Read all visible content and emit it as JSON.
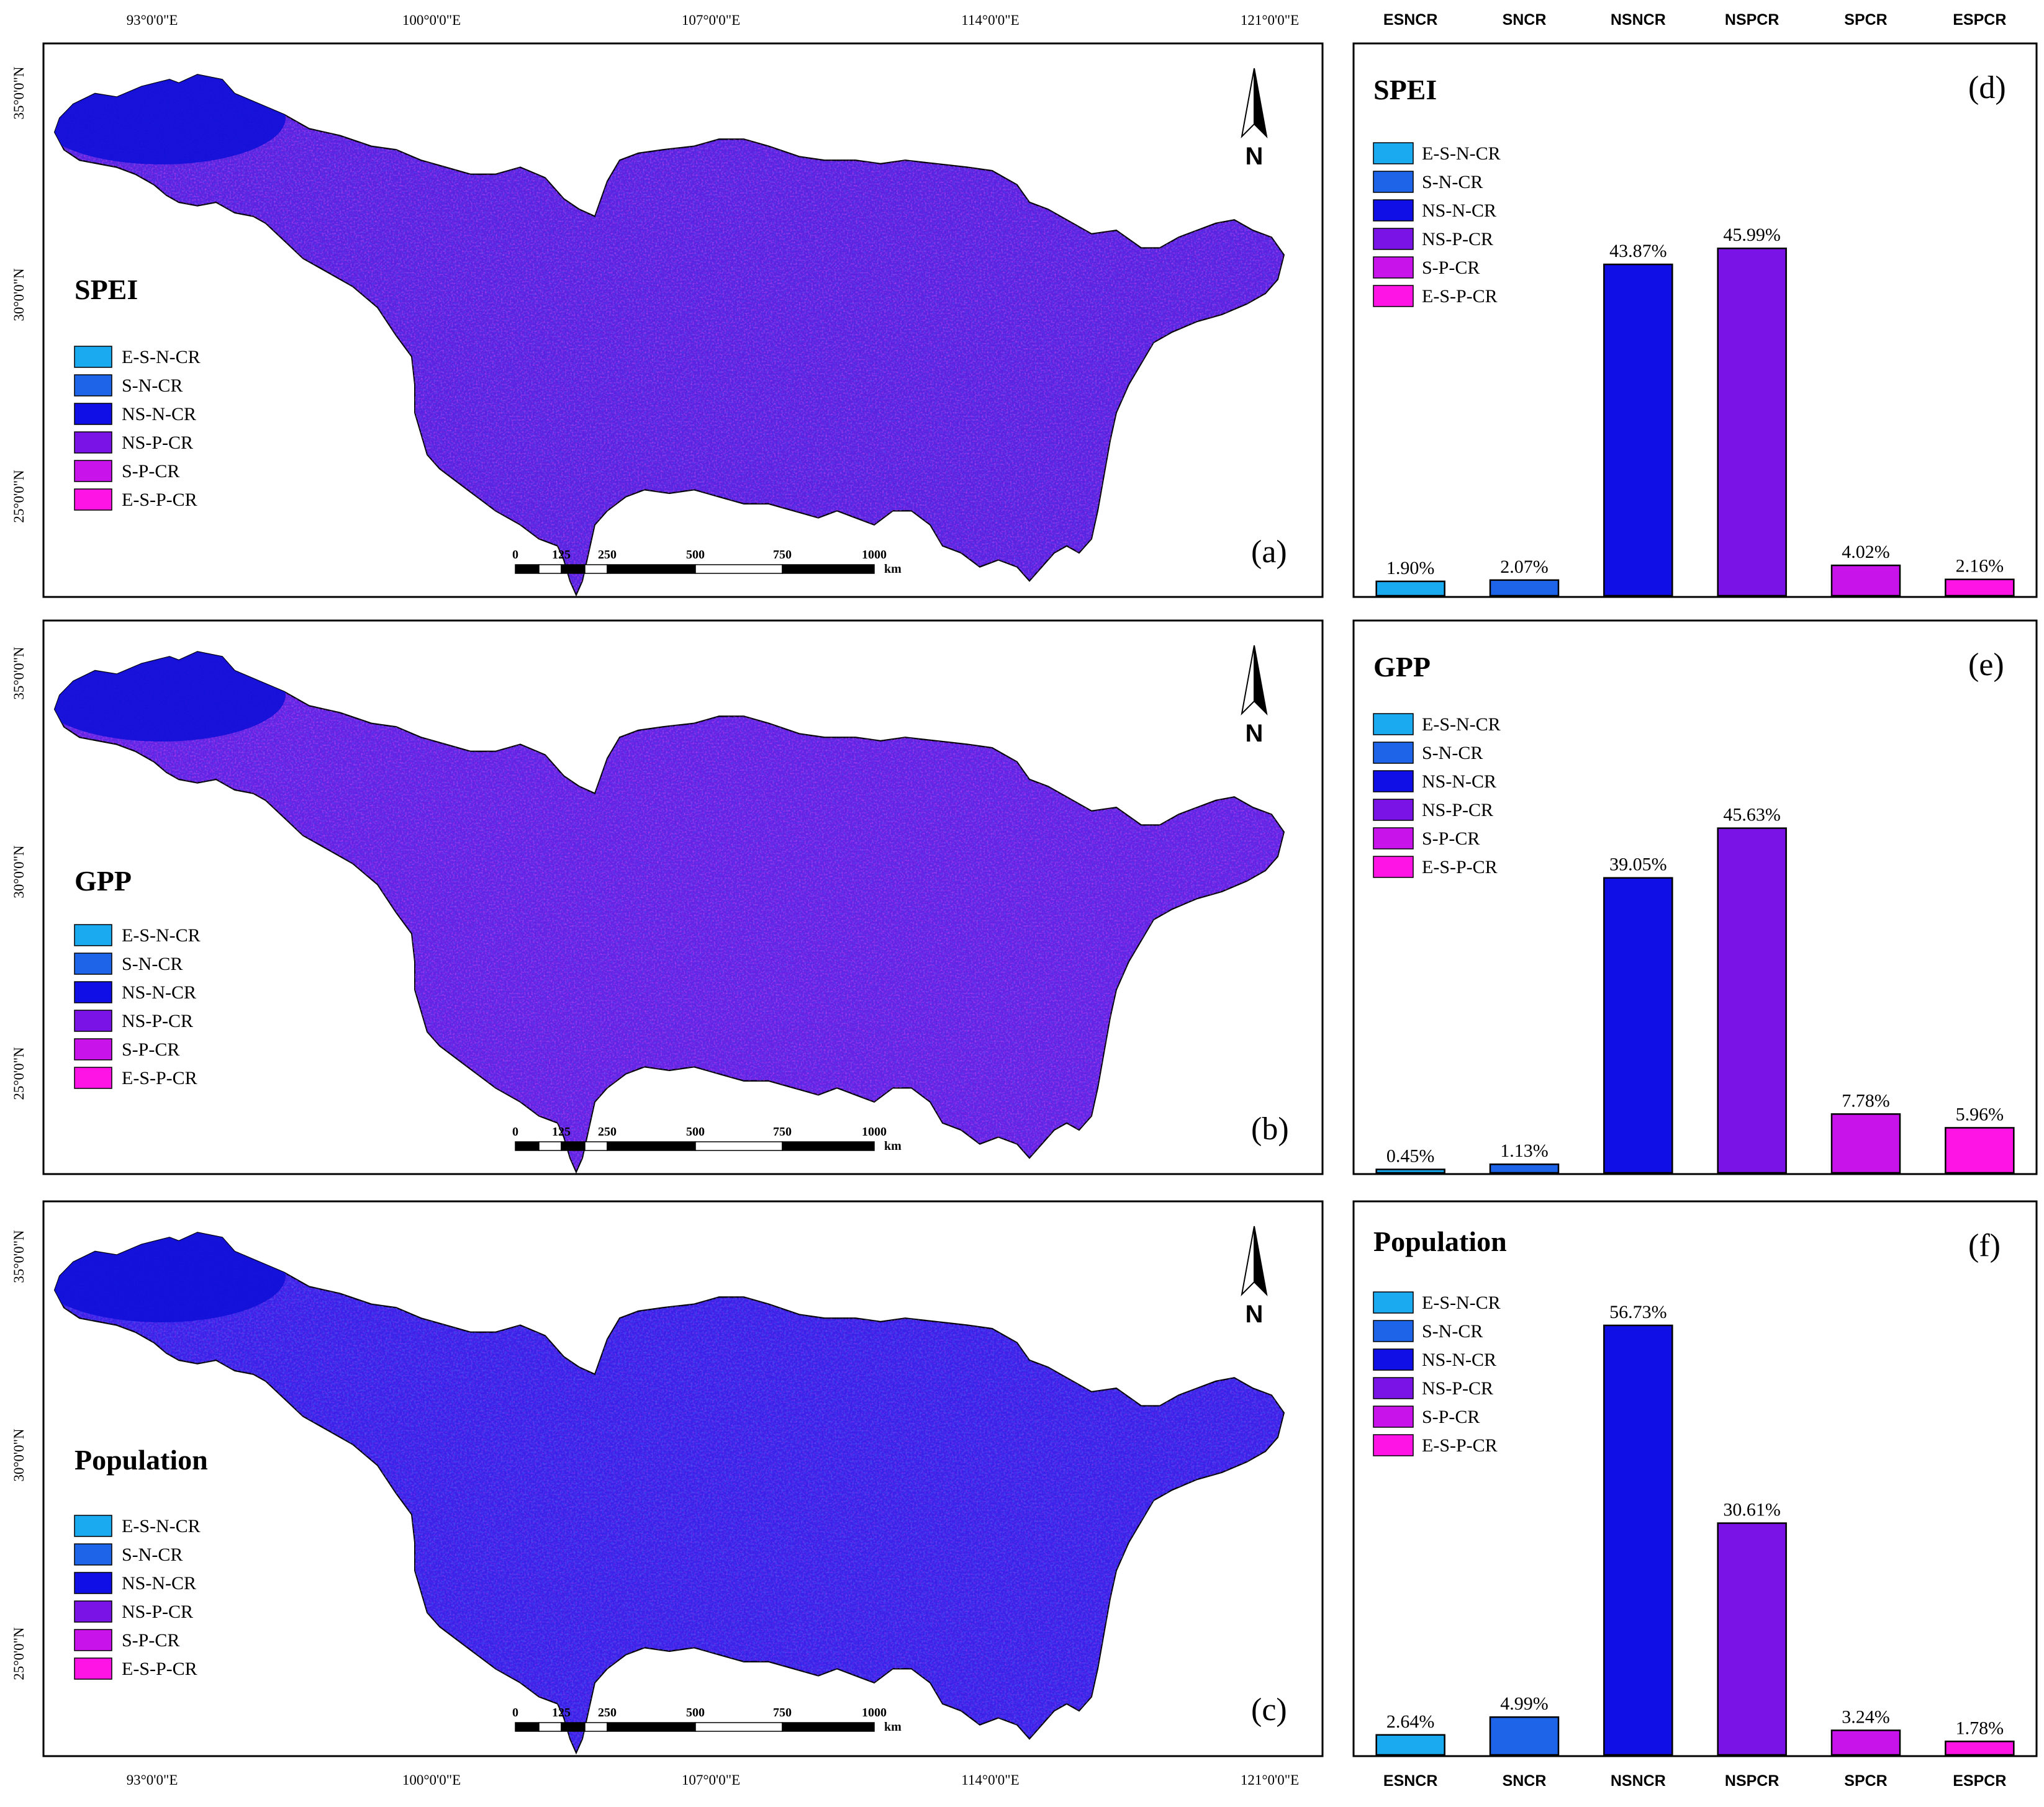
{
  "map_axes": {
    "lon_ticks": [
      "93°0'0\"E",
      "100°0'0\"E",
      "107°0'0\"E",
      "114°0'0\"E",
      "121°0'0\"E"
    ],
    "lat_ticks": [
      "35°0'0\"N",
      "30°0'0\"N",
      "25°0'0\"N"
    ]
  },
  "scale_bar": {
    "labels": [
      "0",
      "125",
      "250",
      "500",
      "750",
      "1000"
    ],
    "unit": "km"
  },
  "north_arrow": {
    "label": "N",
    "icon": "north-arrow-icon"
  },
  "legend": {
    "items": [
      {
        "label": "E-S-N-CR",
        "color": "#19aaf0"
      },
      {
        "label": "S-N-CR",
        "color": "#1e64e8"
      },
      {
        "label": "NS-N-CR",
        "color": "#1010e6"
      },
      {
        "label": "NS-P-CR",
        "color": "#7a14e6"
      },
      {
        "label": "S-P-CR",
        "color": "#c814ea"
      },
      {
        "label": "E-S-P-CR",
        "color": "#ff14e6"
      }
    ]
  },
  "maps": [
    {
      "title": "SPEI",
      "tag": "(a)",
      "base_color": "#5a22e0",
      "dominant": "mixed"
    },
    {
      "title": "GPP",
      "tag": "(b)",
      "base_color": "#6322e4",
      "dominant": "mixed"
    },
    {
      "title": "Population",
      "tag": "(c)",
      "base_color": "#3a20e8",
      "dominant": "blue"
    }
  ],
  "chart_data": [
    {
      "type": "bar",
      "title": "SPEI",
      "tag": "(d)",
      "categories": [
        "ESNCR",
        "SNCR",
        "NSNCR",
        "NSPCR",
        "SPCR",
        "ESPCR"
      ],
      "values": [
        1.9,
        2.07,
        43.87,
        45.99,
        4.02,
        2.16
      ],
      "labels": [
        "1.90%",
        "2.07%",
        "43.87%",
        "45.99%",
        "4.02%",
        "2.16%"
      ],
      "colors": [
        "#19aaf0",
        "#1e64e8",
        "#1010e6",
        "#7a14e6",
        "#c814ea",
        "#ff14e6"
      ],
      "ylim": [
        0,
        70
      ],
      "category_axis": "top",
      "legend": "top-left"
    },
    {
      "type": "bar",
      "title": "GPP",
      "tag": "(e)",
      "categories": [
        "ESNCR",
        "SNCR",
        "NSNCR",
        "NSPCR",
        "SPCR",
        "ESPCR"
      ],
      "values": [
        0.45,
        1.13,
        39.05,
        45.63,
        7.78,
        5.96
      ],
      "labels": [
        "0.45%",
        "1.13%",
        "39.05%",
        "45.63%",
        "7.78%",
        "5.96%"
      ],
      "colors": [
        "#19aaf0",
        "#1e64e8",
        "#1010e6",
        "#7a14e6",
        "#c814ea",
        "#ff14e6"
      ],
      "ylim": [
        0,
        70
      ],
      "legend": "top-left"
    },
    {
      "type": "bar",
      "title": "Population",
      "tag": "(f)",
      "categories": [
        "ESNCR",
        "SNCR",
        "NSNCR",
        "NSPCR",
        "SPCR",
        "ESPCR"
      ],
      "values": [
        2.64,
        4.99,
        56.73,
        30.61,
        3.24,
        1.78
      ],
      "labels": [
        "2.64%",
        "4.99%",
        "56.73%",
        "30.61%",
        "3.24%",
        "1.78%"
      ],
      "colors": [
        "#19aaf0",
        "#1e64e8",
        "#1010e6",
        "#7a14e6",
        "#c814ea",
        "#ff14e6"
      ],
      "ylim": [
        0,
        70
      ],
      "category_axis": "bottom",
      "legend": "top-left"
    }
  ]
}
